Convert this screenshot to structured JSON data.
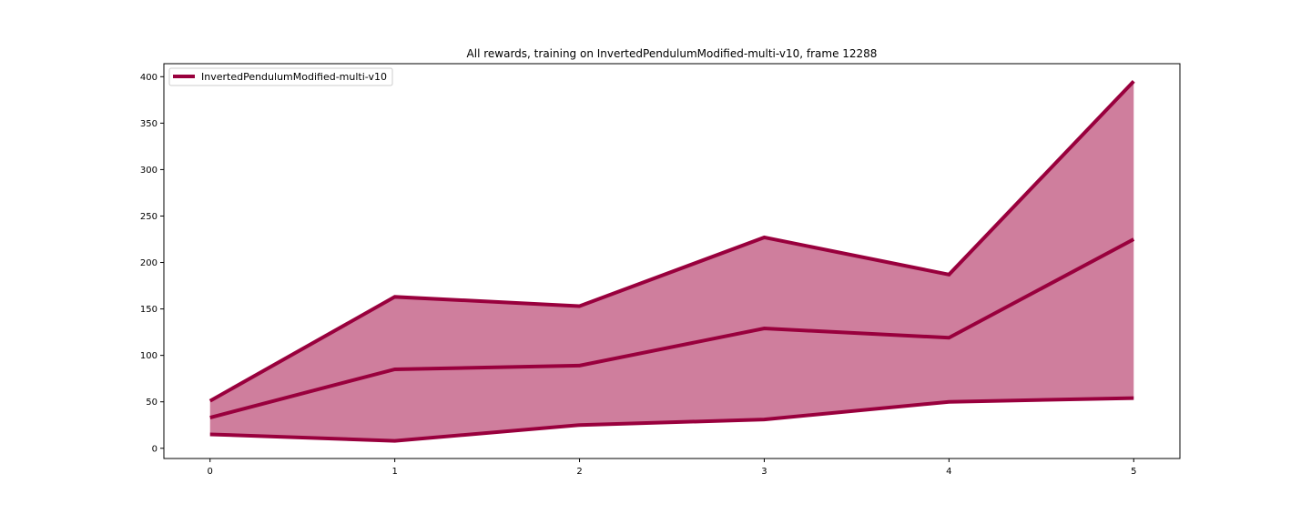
{
  "chart_data": {
    "type": "line",
    "title": "All rewards, training on InvertedPendulumModified-multi-v10, frame 12288",
    "xlabel": "",
    "ylabel": "",
    "x": [
      0,
      1,
      2,
      3,
      4,
      5
    ],
    "xlim": [
      -0.25,
      5.25
    ],
    "ylim": [
      -11,
      414
    ],
    "xticks": [
      0,
      1,
      2,
      3,
      4,
      5
    ],
    "yticks": [
      0,
      50,
      100,
      150,
      200,
      250,
      300,
      350,
      400
    ],
    "legend": {
      "position": "top-left",
      "entries": [
        "InvertedPendulumModified-multi-v10"
      ]
    },
    "series": [
      {
        "name": "max",
        "values": [
          51,
          163,
          153,
          227,
          187,
          395
        ]
      },
      {
        "name": "InvertedPendulumModified-multi-v10",
        "values": [
          33,
          85,
          89,
          129,
          119,
          225
        ]
      },
      {
        "name": "min",
        "values": [
          15,
          8,
          25,
          31,
          50,
          54
        ]
      }
    ],
    "fill_between": {
      "upper": "max",
      "lower": "min"
    },
    "colors": {
      "line": "#99003d",
      "fill": "#cf7e9d"
    },
    "grid": false
  }
}
